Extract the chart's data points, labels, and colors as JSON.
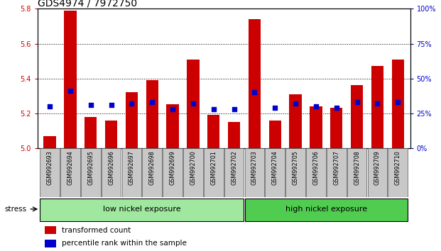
{
  "title": "GDS4974 / 7972750",
  "samples": [
    "GSM992693",
    "GSM992694",
    "GSM992695",
    "GSM992696",
    "GSM992697",
    "GSM992698",
    "GSM992699",
    "GSM992700",
    "GSM992701",
    "GSM992702",
    "GSM992703",
    "GSM992704",
    "GSM992705",
    "GSM992706",
    "GSM992707",
    "GSM992708",
    "GSM992709",
    "GSM992710"
  ],
  "transformed_count": [
    5.07,
    5.79,
    5.18,
    5.16,
    5.32,
    5.39,
    5.25,
    5.51,
    5.19,
    5.15,
    5.74,
    5.16,
    5.31,
    5.24,
    5.23,
    5.36,
    5.47,
    5.51
  ],
  "percentile_rank": [
    30,
    41,
    31,
    31,
    32,
    33,
    28,
    32,
    28,
    28,
    40,
    29,
    32,
    30,
    29,
    33,
    32,
    33
  ],
  "ymin": 5.0,
  "ymax": 5.8,
  "yticks_left": [
    5.0,
    5.2,
    5.4,
    5.6,
    5.8
  ],
  "yticks_right": [
    0,
    25,
    50,
    75,
    100
  ],
  "bar_color": "#cc0000",
  "dot_color": "#0000cc",
  "bar_width": 0.6,
  "group1_label": "low nickel exposure",
  "group2_label": "high nickel exposure",
  "group1_count": 10,
  "stress_label": "stress",
  "legend1": "transformed count",
  "legend2": "percentile rank within the sample",
  "left_tick_color": "#cc0000",
  "right_tick_color": "#0000cc",
  "bg_gray": "#c8c8c8",
  "group1_color": "#a0e8a0",
  "group2_color": "#50cc50",
  "title_fontsize": 10,
  "tick_fontsize": 7,
  "label_fontsize": 7.5
}
